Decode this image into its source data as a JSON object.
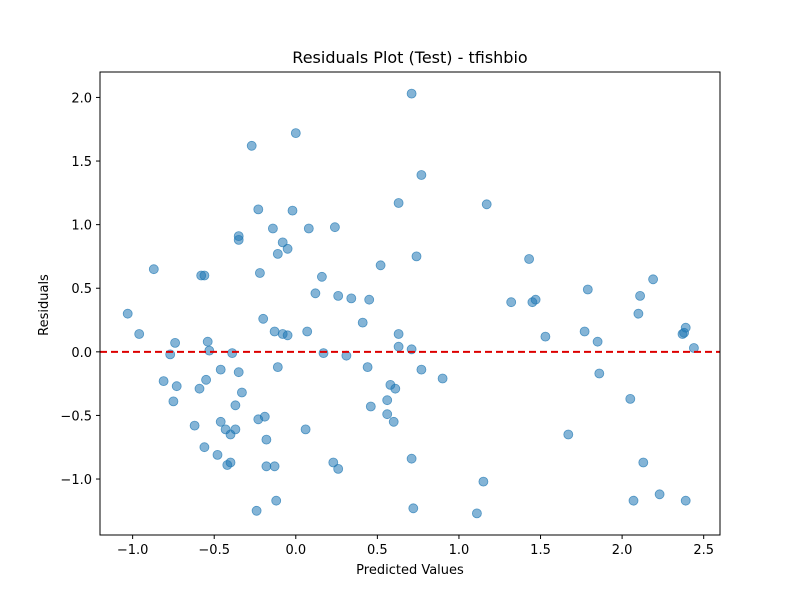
{
  "chart_data": {
    "type": "scatter",
    "title": "Residuals Plot (Test) - tfishbio",
    "xlabel": "Predicted Values",
    "ylabel": "Residuals",
    "xlim": [
      -1.2,
      2.6
    ],
    "ylim": [
      -1.44,
      2.2
    ],
    "xticks": [
      -1.0,
      -0.5,
      0.0,
      0.5,
      1.0,
      1.5,
      2.0,
      2.5
    ],
    "xtick_labels": [
      "−1.0",
      "−0.5",
      "0.0",
      "0.5",
      "1.0",
      "1.5",
      "2.0",
      "2.5"
    ],
    "yticks": [
      -1.0,
      -0.5,
      0.0,
      0.5,
      1.0,
      1.5,
      2.0
    ],
    "ytick_labels": [
      "−1.0",
      "−0.5",
      "0.0",
      "0.5",
      "1.0",
      "1.5",
      "2.0"
    ],
    "grid": false,
    "reference_line": {
      "y": 0,
      "color": "#dd0000",
      "style": "dashed"
    },
    "point_color": "#1f77b4",
    "series": [
      {
        "points": [
          [
            -1.03,
            0.3
          ],
          [
            -0.96,
            0.14
          ],
          [
            -0.87,
            0.65
          ],
          [
            -0.81,
            -0.23
          ],
          [
            -0.77,
            -0.02
          ],
          [
            -0.75,
            -0.39
          ],
          [
            -0.74,
            0.07
          ],
          [
            -0.73,
            -0.27
          ],
          [
            -0.62,
            -0.58
          ],
          [
            -0.59,
            -0.29
          ],
          [
            -0.58,
            0.6
          ],
          [
            -0.56,
            0.6
          ],
          [
            -0.56,
            -0.75
          ],
          [
            -0.55,
            -0.22
          ],
          [
            -0.54,
            0.08
          ],
          [
            -0.53,
            0.01
          ],
          [
            -0.48,
            -0.81
          ],
          [
            -0.46,
            -0.14
          ],
          [
            -0.46,
            -0.55
          ],
          [
            -0.43,
            -0.61
          ],
          [
            -0.42,
            -0.89
          ],
          [
            -0.4,
            -0.65
          ],
          [
            -0.4,
            -0.87
          ],
          [
            -0.39,
            -0.01
          ],
          [
            -0.37,
            -0.61
          ],
          [
            -0.37,
            -0.42
          ],
          [
            -0.35,
            0.91
          ],
          [
            -0.35,
            0.88
          ],
          [
            -0.35,
            -0.16
          ],
          [
            -0.33,
            -0.32
          ],
          [
            -0.27,
            1.62
          ],
          [
            -0.24,
            -1.25
          ],
          [
            -0.23,
            1.12
          ],
          [
            -0.23,
            -0.53
          ],
          [
            -0.22,
            0.62
          ],
          [
            -0.2,
            0.26
          ],
          [
            -0.19,
            -0.51
          ],
          [
            -0.18,
            -0.69
          ],
          [
            -0.18,
            -0.9
          ],
          [
            -0.14,
            0.97
          ],
          [
            -0.13,
            0.16
          ],
          [
            -0.13,
            -0.9
          ],
          [
            -0.12,
            -1.17
          ],
          [
            -0.11,
            0.77
          ],
          [
            -0.11,
            -0.12
          ],
          [
            -0.08,
            0.86
          ],
          [
            -0.08,
            0.14
          ],
          [
            -0.05,
            0.81
          ],
          [
            -0.05,
            0.13
          ],
          [
            -0.02,
            1.11
          ],
          [
            0.0,
            1.72
          ],
          [
            0.06,
            -0.61
          ],
          [
            0.07,
            0.16
          ],
          [
            0.08,
            0.97
          ],
          [
            0.12,
            0.46
          ],
          [
            0.16,
            0.59
          ],
          [
            0.17,
            -0.01
          ],
          [
            0.23,
            -0.87
          ],
          [
            0.24,
            0.98
          ],
          [
            0.26,
            0.44
          ],
          [
            0.26,
            -0.92
          ],
          [
            0.31,
            -0.03
          ],
          [
            0.34,
            0.42
          ],
          [
            0.41,
            0.23
          ],
          [
            0.44,
            -0.12
          ],
          [
            0.45,
            0.41
          ],
          [
            0.46,
            -0.43
          ],
          [
            0.52,
            0.68
          ],
          [
            0.56,
            -0.38
          ],
          [
            0.56,
            -0.49
          ],
          [
            0.58,
            -0.26
          ],
          [
            0.6,
            -0.55
          ],
          [
            0.61,
            -0.29
          ],
          [
            0.63,
            1.17
          ],
          [
            0.63,
            0.14
          ],
          [
            0.63,
            0.04
          ],
          [
            0.71,
            2.03
          ],
          [
            0.71,
            0.02
          ],
          [
            0.71,
            -0.84
          ],
          [
            0.72,
            -1.23
          ],
          [
            0.74,
            0.75
          ],
          [
            0.77,
            1.39
          ],
          [
            0.77,
            -0.14
          ],
          [
            0.9,
            -0.21
          ],
          [
            1.11,
            -1.27
          ],
          [
            1.15,
            -1.02
          ],
          [
            1.17,
            1.16
          ],
          [
            1.32,
            0.39
          ],
          [
            1.43,
            0.73
          ],
          [
            1.45,
            0.39
          ],
          [
            1.47,
            0.41
          ],
          [
            1.53,
            0.12
          ],
          [
            1.67,
            -0.65
          ],
          [
            1.77,
            0.16
          ],
          [
            1.79,
            0.49
          ],
          [
            1.85,
            0.08
          ],
          [
            1.86,
            -0.17
          ],
          [
            2.05,
            -0.37
          ],
          [
            2.07,
            -1.17
          ],
          [
            2.1,
            0.3
          ],
          [
            2.11,
            0.44
          ],
          [
            2.13,
            -0.87
          ],
          [
            2.19,
            0.57
          ],
          [
            2.23,
            -1.12
          ],
          [
            2.37,
            0.14
          ],
          [
            2.38,
            0.15
          ],
          [
            2.39,
            0.19
          ],
          [
            2.39,
            -1.17
          ],
          [
            2.44,
            0.03
          ]
        ]
      }
    ]
  }
}
